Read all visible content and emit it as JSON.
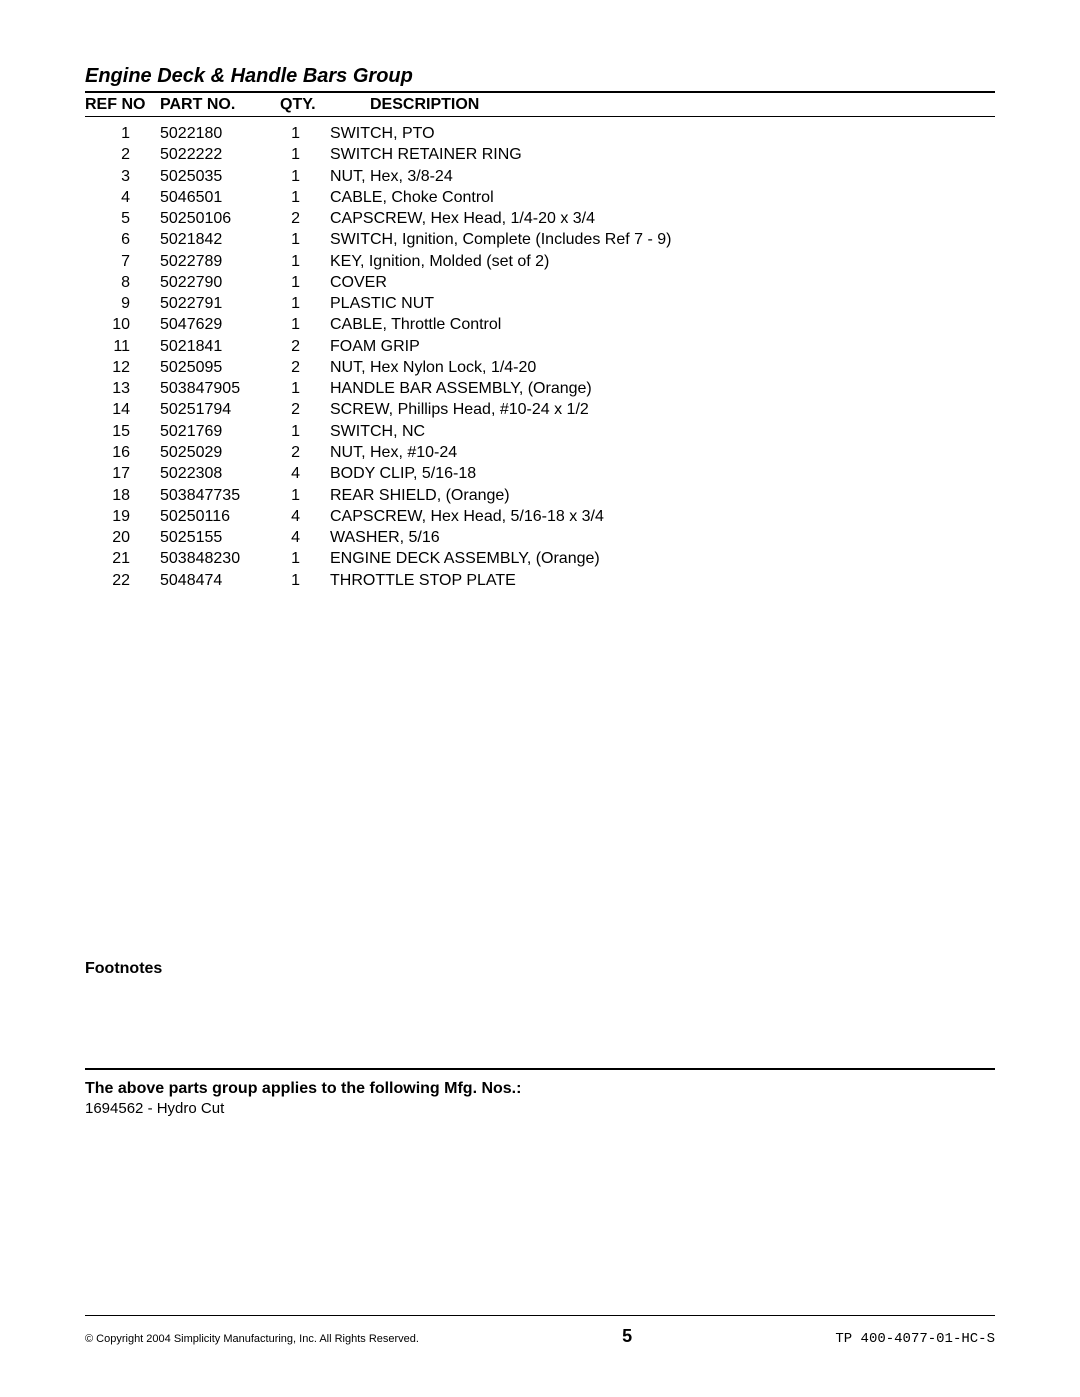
{
  "title": "Engine Deck & Handle Bars Group",
  "headers": {
    "ref": "REF NO",
    "part": "PART NO.",
    "qty": "QTY.",
    "desc": "DESCRIPTION"
  },
  "rows": [
    {
      "ref": "1",
      "part": "5022180",
      "qty": "1",
      "desc": "SWITCH, PTO"
    },
    {
      "ref": "2",
      "part": "5022222",
      "qty": "1",
      "desc": "SWITCH RETAINER RING"
    },
    {
      "ref": "3",
      "part": "5025035",
      "qty": "1",
      "desc": "NUT, Hex, 3/8-24"
    },
    {
      "ref": "4",
      "part": "5046501",
      "qty": "1",
      "desc": "CABLE, Choke Control"
    },
    {
      "ref": "5",
      "part": "50250106",
      "qty": "2",
      "desc": "CAPSCREW, Hex Head, 1/4-20 x 3/4"
    },
    {
      "ref": "6",
      "part": "5021842",
      "qty": "1",
      "desc": "SWITCH, Ignition, Complete (Includes Ref 7 - 9)"
    },
    {
      "ref": "7",
      "part": "5022789",
      "qty": "1",
      "desc": "KEY, Ignition, Molded (set of 2)"
    },
    {
      "ref": "8",
      "part": "5022790",
      "qty": "1",
      "desc": "COVER"
    },
    {
      "ref": "9",
      "part": "5022791",
      "qty": "1",
      "desc": "PLASTIC NUT"
    },
    {
      "ref": "10",
      "part": "5047629",
      "qty": "1",
      "desc": "CABLE, Throttle Control"
    },
    {
      "ref": "11",
      "part": "5021841",
      "qty": "2",
      "desc": "FOAM GRIP"
    },
    {
      "ref": "12",
      "part": "5025095",
      "qty": "2",
      "desc": "NUT, Hex Nylon Lock, 1/4-20"
    },
    {
      "ref": "13",
      "part": "503847905",
      "qty": "1",
      "desc": "HANDLE BAR ASSEMBLY, (Orange)"
    },
    {
      "ref": "14",
      "part": "50251794",
      "qty": "2",
      "desc": "SCREW, Phillips Head, #10-24 x 1/2"
    },
    {
      "ref": "15",
      "part": "5021769",
      "qty": "1",
      "desc": "SWITCH, NC"
    },
    {
      "ref": "16",
      "part": "5025029",
      "qty": "2",
      "desc": "NUT, Hex, #10-24"
    },
    {
      "ref": "17",
      "part": "5022308",
      "qty": "4",
      "desc": "BODY CLIP, 5/16-18"
    },
    {
      "ref": "18",
      "part": "503847735",
      "qty": "1",
      "desc": "REAR SHIELD, (Orange)"
    },
    {
      "ref": "19",
      "part": "50250116",
      "qty": "4",
      "desc": "CAPSCREW, Hex Head, 5/16-18 x 3/4"
    },
    {
      "ref": "20",
      "part": "5025155",
      "qty": "4",
      "desc": "WASHER, 5/16"
    },
    {
      "ref": "21",
      "part": "503848230",
      "qty": "1",
      "desc": "ENGINE DECK ASSEMBLY, (Orange)"
    },
    {
      "ref": "22",
      "part": "5048474",
      "qty": "1",
      "desc": "THROTTLE STOP PLATE"
    }
  ],
  "footnotes_label": "Footnotes",
  "applies_to": {
    "label": "The above parts group applies to the following Mfg. Nos.:",
    "text": "1694562 - Hydro Cut"
  },
  "footer": {
    "copyright": "© Copyright 2004 Simplicity Manufacturing, Inc. All Rights Reserved.",
    "page": "5",
    "doc_code": "TP 400-4077-01-HC-S"
  }
}
